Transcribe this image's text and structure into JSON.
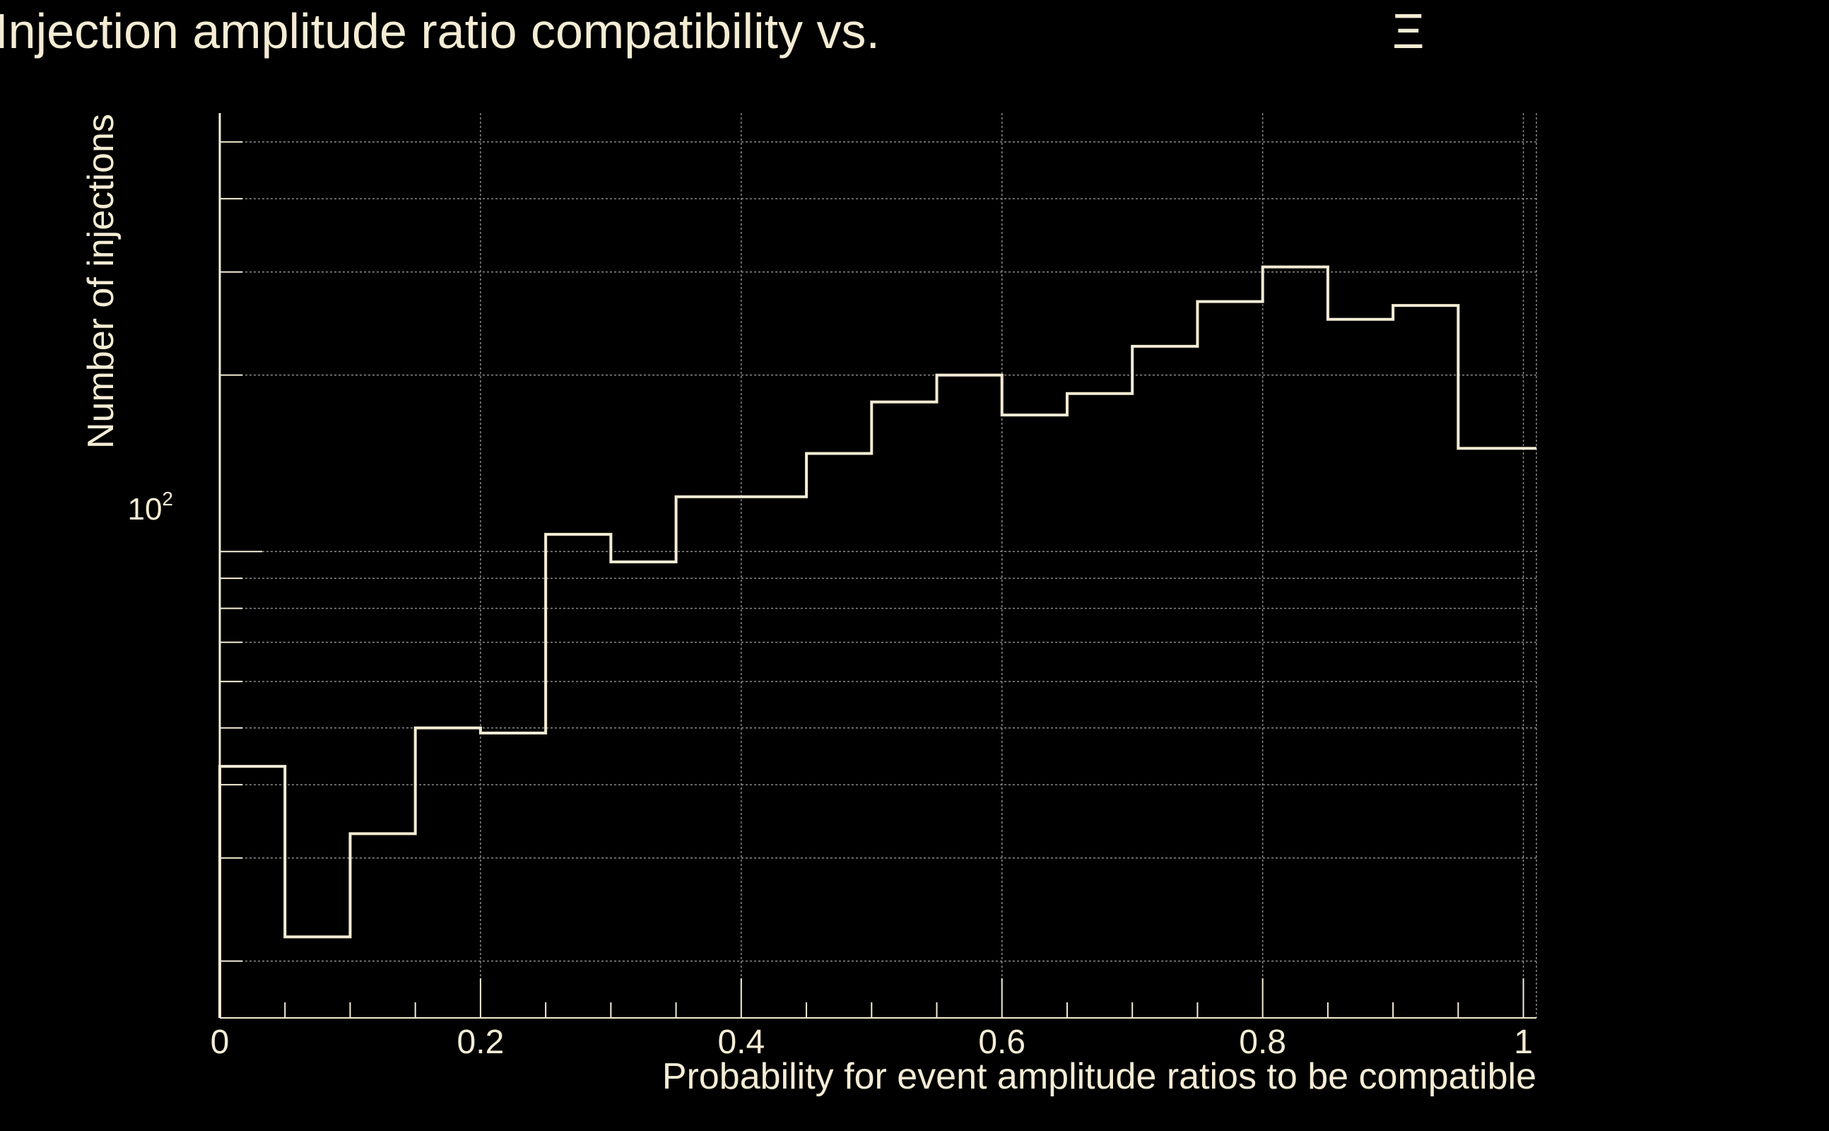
{
  "chart_data": {
    "type": "histogram",
    "title": "Injection amplitude ratio compatibility vs.",
    "title_symbol": "Ξ",
    "xlabel": "Probability for event amplitude ratios to be compatible",
    "ylabel": "Number of injections",
    "x_scale": "linear",
    "y_scale": "log",
    "xlim": [
      0,
      1.01
    ],
    "ylim": [
      16,
      560
    ],
    "x_ticks": [
      "0",
      "0.2",
      "0.4",
      "0.6",
      "0.8",
      "1"
    ],
    "y_tick_label": {
      "base": "10",
      "exponent": "2"
    },
    "grid": true,
    "bin_edges": [
      0,
      0.05,
      0.1,
      0.15,
      0.2,
      0.25,
      0.3,
      0.35,
      0.4,
      0.45,
      0.5,
      0.55,
      0.6,
      0.65,
      0.7,
      0.75,
      0.8,
      0.85,
      0.9,
      0.95,
      1.01
    ],
    "values": [
      43,
      22,
      33,
      50,
      49,
      107,
      96,
      124,
      124,
      147,
      180,
      200,
      171,
      186,
      224,
      267,
      306,
      249,
      263,
      150
    ],
    "colors": {
      "background": "#000000",
      "line": "#f4ecd4",
      "text": "#f4ecd4",
      "grid": "#8a8a8a"
    }
  }
}
